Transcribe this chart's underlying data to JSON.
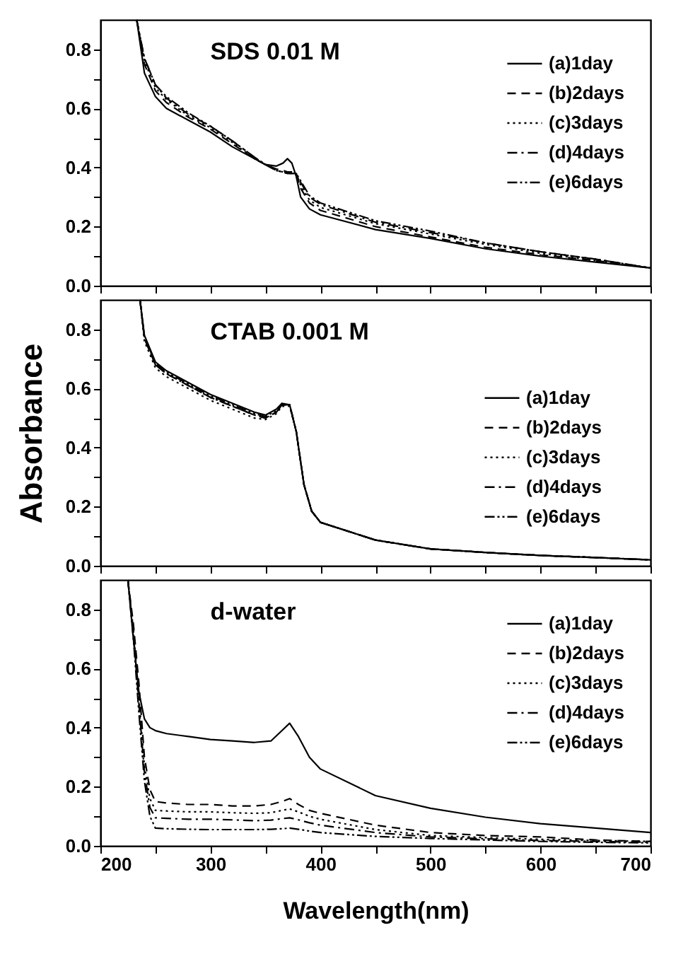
{
  "chart_data": [
    {
      "type": "line",
      "annotations": [
        "SDS 0.01 M"
      ],
      "x": [
        233,
        240,
        250,
        260,
        280,
        300,
        320,
        340,
        350,
        360,
        366,
        370,
        374,
        378,
        382,
        390,
        400,
        450,
        500,
        550,
        600,
        650,
        700
      ],
      "series": [
        {
          "name": "(a)1day",
          "color": "#000000",
          "line_style": "solid",
          "values": [
            0.9,
            0.72,
            0.64,
            0.6,
            0.56,
            0.52,
            0.47,
            0.43,
            0.41,
            0.405,
            0.415,
            0.43,
            0.415,
            0.37,
            0.3,
            0.26,
            0.24,
            0.19,
            0.16,
            0.125,
            0.1,
            0.08,
            0.06
          ]
        },
        {
          "name": "(b)2days",
          "color": "#000000",
          "line_style": "dashed",
          "values": [
            0.9,
            0.75,
            0.66,
            0.62,
            0.57,
            0.53,
            0.48,
            0.43,
            0.41,
            0.395,
            0.39,
            0.385,
            0.385,
            0.38,
            0.33,
            0.28,
            0.255,
            0.2,
            0.165,
            0.13,
            0.105,
            0.085,
            0.06
          ]
        },
        {
          "name": "(c)3days",
          "color": "#000000",
          "line_style": "dotted",
          "values": [
            0.9,
            0.76,
            0.67,
            0.63,
            0.575,
            0.535,
            0.485,
            0.43,
            0.41,
            0.39,
            0.385,
            0.38,
            0.38,
            0.38,
            0.34,
            0.29,
            0.265,
            0.21,
            0.175,
            0.14,
            0.11,
            0.085,
            0.06
          ]
        },
        {
          "name": "(d)4days",
          "color": "#000000",
          "line_style": "dashdot",
          "values": [
            0.9,
            0.77,
            0.68,
            0.635,
            0.58,
            0.54,
            0.49,
            0.435,
            0.41,
            0.39,
            0.385,
            0.38,
            0.38,
            0.38,
            0.35,
            0.3,
            0.275,
            0.215,
            0.18,
            0.145,
            0.115,
            0.09,
            0.06
          ]
        },
        {
          "name": "(e)6days",
          "color": "#000000",
          "line_style": "dashdotdot",
          "values": [
            0.9,
            0.77,
            0.68,
            0.64,
            0.585,
            0.54,
            0.49,
            0.435,
            0.41,
            0.39,
            0.385,
            0.38,
            0.38,
            0.38,
            0.355,
            0.305,
            0.28,
            0.22,
            0.185,
            0.145,
            0.115,
            0.09,
            0.06
          ]
        }
      ],
      "xlim": [
        200,
        700
      ],
      "xticks": [
        {
          "value": 200,
          "label": null
        },
        {
          "value": 250,
          "label": null
        },
        {
          "value": 300,
          "label": null
        },
        {
          "value": 350,
          "label": null
        },
        {
          "value": 400,
          "label": null
        },
        {
          "value": 450,
          "label": null
        },
        {
          "value": 500,
          "label": null
        },
        {
          "value": 550,
          "label": null
        },
        {
          "value": 600,
          "label": null
        },
        {
          "value": 650,
          "label": null
        },
        {
          "value": 700,
          "label": null
        }
      ],
      "ylim": [
        0,
        0.9
      ],
      "yticks": [
        {
          "value": 0,
          "label": "0.0"
        },
        {
          "value": 0.1,
          "label": null
        },
        {
          "value": 0.2,
          "label": "0.2"
        },
        {
          "value": 0.3,
          "label": null
        },
        {
          "value": 0.4,
          "label": "0.4"
        },
        {
          "value": 0.5,
          "label": null
        },
        {
          "value": 0.6,
          "label": "0.6"
        },
        {
          "value": 0.7,
          "label": null
        },
        {
          "value": 0.8,
          "label": "0.8"
        }
      ],
      "tick_labels": "y",
      "grid": false,
      "legend": "top right"
    },
    {
      "type": "line",
      "annotations": [
        "CTAB 0.001 M"
      ],
      "ylabel": "Absorbance",
      "x": [
        236,
        240,
        250,
        260,
        280,
        300,
        320,
        340,
        350,
        360,
        365,
        372,
        378,
        385,
        392,
        400,
        450,
        500,
        550,
        600,
        650,
        700
      ],
      "series": [
        {
          "name": "(a)1day",
          "color": "#000000",
          "line_style": "solid",
          "values": [
            0.9,
            0.78,
            0.69,
            0.66,
            0.62,
            0.58,
            0.55,
            0.52,
            0.51,
            0.53,
            0.55,
            0.545,
            0.455,
            0.275,
            0.185,
            0.147,
            0.087,
            0.057,
            0.045,
            0.035,
            0.028,
            0.02
          ]
        },
        {
          "name": "(b)2days",
          "color": "#000000",
          "line_style": "dashed",
          "values": [
            0.9,
            0.77,
            0.68,
            0.65,
            0.61,
            0.57,
            0.54,
            0.51,
            0.5,
            0.52,
            0.545,
            0.545,
            0.455,
            0.275,
            0.185,
            0.147,
            0.087,
            0.057,
            0.045,
            0.035,
            0.028,
            0.02
          ]
        },
        {
          "name": "(c)3days",
          "color": "#000000",
          "line_style": "dotted",
          "values": [
            0.9,
            0.76,
            0.67,
            0.64,
            0.6,
            0.56,
            0.53,
            0.5,
            0.495,
            0.515,
            0.54,
            0.54,
            0.455,
            0.275,
            0.185,
            0.147,
            0.087,
            0.057,
            0.045,
            0.035,
            0.028,
            0.02
          ]
        },
        {
          "name": "(d)4days",
          "color": "#000000",
          "line_style": "dashdot",
          "values": [
            0.9,
            0.77,
            0.68,
            0.65,
            0.61,
            0.57,
            0.54,
            0.51,
            0.5,
            0.52,
            0.545,
            0.545,
            0.455,
            0.275,
            0.185,
            0.147,
            0.087,
            0.057,
            0.045,
            0.035,
            0.028,
            0.02
          ]
        },
        {
          "name": "(e)6days",
          "color": "#000000",
          "line_style": "dashdotdot",
          "values": [
            0.9,
            0.775,
            0.685,
            0.655,
            0.615,
            0.575,
            0.545,
            0.515,
            0.505,
            0.525,
            0.545,
            0.545,
            0.455,
            0.275,
            0.185,
            0.147,
            0.087,
            0.057,
            0.045,
            0.035,
            0.028,
            0.02
          ]
        }
      ],
      "xlim": [
        200,
        700
      ],
      "xticks": [
        {
          "value": 200,
          "label": null
        },
        {
          "value": 250,
          "label": null
        },
        {
          "value": 300,
          "label": null
        },
        {
          "value": 350,
          "label": null
        },
        {
          "value": 400,
          "label": null
        },
        {
          "value": 450,
          "label": null
        },
        {
          "value": 500,
          "label": null
        },
        {
          "value": 550,
          "label": null
        },
        {
          "value": 600,
          "label": null
        },
        {
          "value": 650,
          "label": null
        },
        {
          "value": 700,
          "label": null
        }
      ],
      "ylim": [
        0,
        0.9
      ],
      "yticks": [
        {
          "value": 0,
          "label": "0.0"
        },
        {
          "value": 0.1,
          "label": null
        },
        {
          "value": 0.2,
          "label": "0.2"
        },
        {
          "value": 0.3,
          "label": null
        },
        {
          "value": 0.4,
          "label": "0.4"
        },
        {
          "value": 0.5,
          "label": null
        },
        {
          "value": 0.6,
          "label": "0.6"
        },
        {
          "value": 0.7,
          "label": null
        },
        {
          "value": 0.8,
          "label": "0.8"
        }
      ],
      "tick_labels": "y",
      "grid": false,
      "legend": "right"
    },
    {
      "type": "line",
      "annotations": [
        "d-water"
      ],
      "xlabel": "Wavelength(nm)",
      "x": [
        225,
        230,
        235,
        240,
        245,
        250,
        260,
        280,
        300,
        320,
        340,
        355,
        365,
        372,
        380,
        390,
        400,
        450,
        500,
        550,
        600,
        650,
        700
      ],
      "series": [
        {
          "name": "(a)1day",
          "color": "#000000",
          "line_style": "solid",
          "values": [
            0.9,
            0.7,
            0.52,
            0.43,
            0.4,
            0.39,
            0.38,
            0.37,
            0.36,
            0.355,
            0.35,
            0.355,
            0.39,
            0.415,
            0.37,
            0.3,
            0.26,
            0.17,
            0.127,
            0.097,
            0.075,
            0.06,
            0.045
          ]
        },
        {
          "name": "(b)2days",
          "color": "#000000",
          "line_style": "dashed",
          "values": [
            0.9,
            0.75,
            0.55,
            0.3,
            0.19,
            0.15,
            0.145,
            0.14,
            0.14,
            0.135,
            0.135,
            0.14,
            0.15,
            0.16,
            0.14,
            0.12,
            0.11,
            0.07,
            0.045,
            0.035,
            0.03,
            0.02,
            0.015
          ]
        },
        {
          "name": "(c)3days",
          "color": "#000000",
          "line_style": "dotted",
          "values": [
            0.9,
            0.73,
            0.5,
            0.27,
            0.16,
            0.12,
            0.118,
            0.115,
            0.115,
            0.112,
            0.11,
            0.112,
            0.12,
            0.125,
            0.115,
            0.1,
            0.09,
            0.055,
            0.035,
            0.028,
            0.022,
            0.018,
            0.015
          ]
        },
        {
          "name": "(d)4days",
          "color": "#000000",
          "line_style": "dashdot",
          "values": [
            0.9,
            0.72,
            0.48,
            0.25,
            0.13,
            0.095,
            0.093,
            0.09,
            0.09,
            0.088,
            0.085,
            0.087,
            0.092,
            0.095,
            0.088,
            0.078,
            0.07,
            0.045,
            0.03,
            0.024,
            0.018,
            0.015,
            0.012
          ]
        },
        {
          "name": "(e)6days",
          "color": "#000000",
          "line_style": "dashdotdot",
          "values": [
            0.9,
            0.7,
            0.45,
            0.22,
            0.1,
            0.06,
            0.058,
            0.056,
            0.055,
            0.055,
            0.055,
            0.056,
            0.058,
            0.06,
            0.056,
            0.05,
            0.045,
            0.032,
            0.025,
            0.02,
            0.015,
            0.012,
            0.01
          ]
        }
      ],
      "xlim": [
        200,
        700
      ],
      "xticks": [
        200,
        {
          "value": 250,
          "label": null
        },
        300,
        {
          "value": 350,
          "label": null
        },
        400,
        {
          "value": 450,
          "label": null
        },
        500,
        {
          "value": 550,
          "label": null
        },
        600,
        {
          "value": 650,
          "label": null
        },
        700
      ],
      "ylim": [
        0,
        0.9
      ],
      "yticks": [
        {
          "value": 0,
          "label": "0.0"
        },
        {
          "value": 0.1,
          "label": null
        },
        {
          "value": 0.2,
          "label": "0.2"
        },
        {
          "value": 0.3,
          "label": null
        },
        {
          "value": 0.4,
          "label": "0.4"
        },
        {
          "value": 0.5,
          "label": null
        },
        {
          "value": 0.6,
          "label": "0.6"
        },
        {
          "value": 0.7,
          "label": null
        },
        {
          "value": 0.8,
          "label": "0.8"
        }
      ],
      "grid": false,
      "legend": "top right"
    }
  ]
}
